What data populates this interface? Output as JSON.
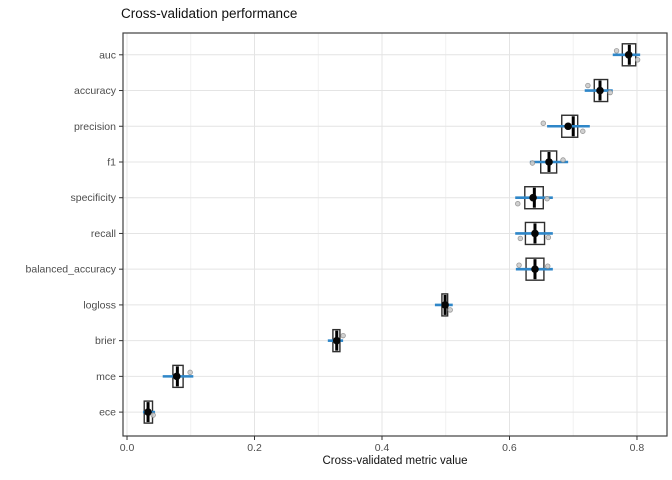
{
  "title": "Cross-validation performance",
  "chart_data": {
    "type": "boxplot",
    "orientation": "horizontal",
    "title": "Cross-validation performance",
    "xlabel": "Cross-validated metric value",
    "ylabel": "",
    "xlim": [
      -0.0063,
      0.8471
    ],
    "x_ticks": [
      0.0,
      0.2,
      0.4,
      0.6,
      0.8
    ],
    "x_tick_labels": [
      "0.0",
      "0.2",
      "0.4",
      "0.6",
      "0.8"
    ],
    "x_minor_ticks": [
      0.1,
      0.3,
      0.5,
      0.7
    ],
    "grid": "major-and-minor",
    "legend": "none",
    "categories": [
      "auc",
      "accuracy",
      "precision",
      "f1",
      "specificity",
      "recall",
      "balanced_accuracy",
      "logloss",
      "brier",
      "mce",
      "ece"
    ],
    "metrics": [
      {
        "name": "auc",
        "q1": 0.777,
        "median": 0.788,
        "q3": 0.798,
        "point": 0.787,
        "interval": [
          0.762,
          0.805
        ],
        "jitter": [
          {
            "v": 0.768,
            "dy": -4
          },
          {
            "v": 0.801,
            "dy": 5
          }
        ]
      },
      {
        "name": "accuracy",
        "q1": 0.733,
        "median": 0.742,
        "q3": 0.754,
        "point": 0.742,
        "interval": [
          0.718,
          0.762
        ],
        "jitter": [
          {
            "v": 0.723,
            "dy": -5
          },
          {
            "v": 0.758,
            "dy": 2
          }
        ]
      },
      {
        "name": "precision",
        "q1": 0.682,
        "median": 0.7,
        "q3": 0.707,
        "point": 0.692,
        "interval": [
          0.659,
          0.726
        ],
        "jitter": [
          {
            "v": 0.653,
            "dy": -3
          },
          {
            "v": 0.715,
            "dy": 5
          }
        ]
      },
      {
        "name": "f1",
        "q1": 0.649,
        "median": 0.662,
        "q3": 0.674,
        "point": 0.662,
        "interval": [
          0.632,
          0.692
        ],
        "jitter": [
          {
            "v": 0.636,
            "dy": 1
          },
          {
            "v": 0.684,
            "dy": -2
          }
        ]
      },
      {
        "name": "specificity",
        "q1": 0.624,
        "median": 0.639,
        "q3": 0.653,
        "point": 0.637,
        "interval": [
          0.609,
          0.668
        ],
        "jitter": [
          {
            "v": 0.613,
            "dy": 6
          },
          {
            "v": 0.659,
            "dy": 1
          }
        ]
      },
      {
        "name": "recall",
        "q1": 0.625,
        "median": 0.64,
        "q3": 0.655,
        "point": 0.64,
        "interval": [
          0.609,
          0.668
        ],
        "jitter": [
          {
            "v": 0.617,
            "dy": 5
          },
          {
            "v": 0.661,
            "dy": 4
          }
        ]
      },
      {
        "name": "balanced_accuracy",
        "q1": 0.626,
        "median": 0.64,
        "q3": 0.654,
        "point": 0.64,
        "interval": [
          0.61,
          0.668
        ],
        "jitter": [
          {
            "v": 0.615,
            "dy": -4
          },
          {
            "v": 0.66,
            "dy": -3
          }
        ]
      },
      {
        "name": "logloss",
        "q1": 0.494,
        "median": 0.499,
        "q3": 0.503,
        "point": 0.499,
        "interval": [
          0.483,
          0.511
        ],
        "jitter": [
          {
            "v": 0.507,
            "dy": 5
          }
        ]
      },
      {
        "name": "brier",
        "q1": 0.323,
        "median": 0.329,
        "q3": 0.334,
        "point": 0.329,
        "interval": [
          0.315,
          0.339
        ],
        "jitter": [
          {
            "v": 0.339,
            "dy": -5
          }
        ]
      },
      {
        "name": "mce",
        "q1": 0.072,
        "median": 0.079,
        "q3": 0.088,
        "point": 0.078,
        "interval": [
          0.056,
          0.104
        ],
        "jitter": [
          {
            "v": 0.099,
            "dy": -4
          }
        ]
      },
      {
        "name": "ece",
        "q1": 0.027,
        "median": 0.033,
        "q3": 0.04,
        "point": 0.033,
        "interval": [
          0.025,
          0.044
        ],
        "jitter": [
          {
            "v": 0.041,
            "dy": 3
          }
        ]
      }
    ],
    "colors": {
      "box_outline": "#2f2f2f",
      "box_fill": "#ffffff",
      "median_line": "#000000",
      "summary_point": "#060606",
      "interval_line": "#2e86c8",
      "jitter_fill": "#cccccc",
      "jitter_stroke": "#8f8f8f",
      "grid_major": "#e4e4e4",
      "grid_minor": "#f1f1f1",
      "panel_border": "#404040",
      "tick": "#333333",
      "axis_text": "#4d4d4d"
    }
  }
}
